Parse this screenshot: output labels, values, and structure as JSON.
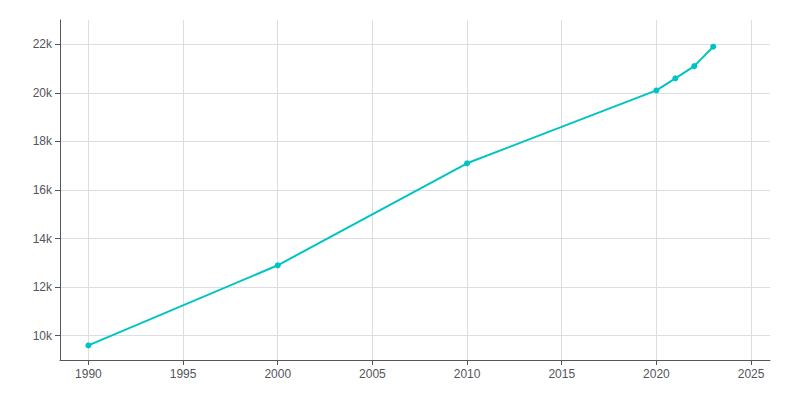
{
  "chart_data": {
    "type": "line",
    "x": [
      1990,
      2000,
      2010,
      2020,
      2021,
      2022,
      2023
    ],
    "values": [
      9600,
      12900,
      17100,
      20100,
      20600,
      21100,
      21900
    ],
    "color": "#00C4C4",
    "marker": "circle",
    "xlim": [
      1988.5,
      2026
    ],
    "ylim": [
      9000,
      23000
    ],
    "xticks": [
      1990,
      1995,
      2000,
      2005,
      2010,
      2015,
      2020,
      2025
    ],
    "yticks": [
      {
        "value": 10000,
        "label": "10k"
      },
      {
        "value": 12000,
        "label": "12k"
      },
      {
        "value": 14000,
        "label": "14k"
      },
      {
        "value": 16000,
        "label": "16k"
      },
      {
        "value": 18000,
        "label": "18k"
      },
      {
        "value": 20000,
        "label": "20k"
      },
      {
        "value": 22000,
        "label": "22k"
      }
    ],
    "grid": true
  }
}
